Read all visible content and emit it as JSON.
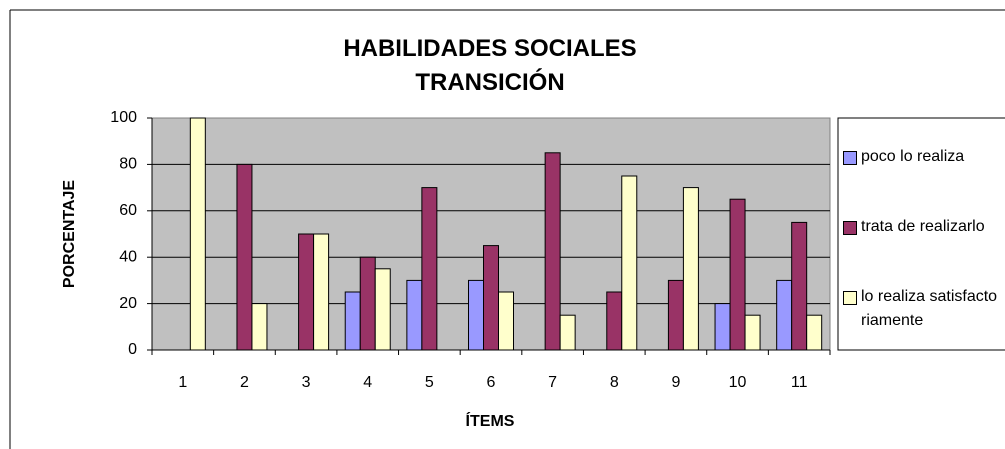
{
  "chart_data": {
    "type": "bar",
    "title": "HABILIDADES SOCIALES TRANSICIÓN",
    "xlabel": "ÍTEMS",
    "ylabel": "PORCENTAJE",
    "categories": [
      "1",
      "2",
      "3",
      "4",
      "5",
      "6",
      "7",
      "8",
      "9",
      "10",
      "11"
    ],
    "series": [
      {
        "name": "poco lo realiza",
        "color": "#9999ff",
        "values": [
          0,
          0,
          0,
          25,
          30,
          30,
          0,
          0,
          0,
          20,
          30
        ]
      },
      {
        "name": "trata de realizarlo",
        "color": "#993366",
        "values": [
          0,
          80,
          50,
          40,
          70,
          45,
          85,
          25,
          30,
          65,
          55
        ]
      },
      {
        "name": "lo realiza satisfactoriamente",
        "color": "#ffffcc",
        "values": [
          100,
          20,
          50,
          35,
          0,
          25,
          15,
          75,
          70,
          15,
          15
        ]
      }
    ],
    "ylim": [
      0,
      100
    ],
    "yticks": [
      0,
      20,
      40,
      60,
      80,
      100
    ],
    "grid": true,
    "legend": "right"
  }
}
